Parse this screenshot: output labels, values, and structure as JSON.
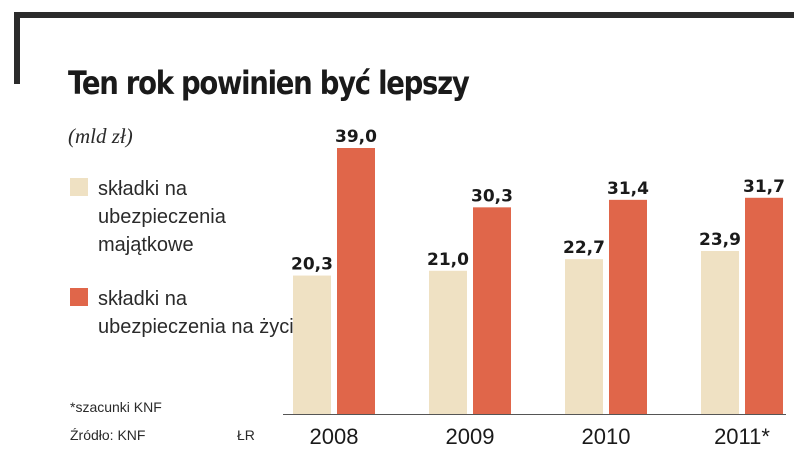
{
  "title": "Ten rok powinien być lepszy",
  "unit": "(mld zł)",
  "legend": [
    {
      "label": "składki na ubezpieczenia majątkowe",
      "color": "#efe1c3"
    },
    {
      "label": "składki na ubezpieczenia na życie",
      "color": "#e0664a"
    }
  ],
  "footnote": "*szacunki KNF",
  "source": "Źródło: KNF",
  "initials": "ŁR",
  "chart_data": {
    "type": "bar",
    "categories": [
      "2008",
      "2009",
      "2010",
      "2011*"
    ],
    "series": [
      {
        "name": "składki na ubezpieczenia majątkowe",
        "values": [
          20.3,
          21.0,
          22.7,
          23.9
        ],
        "labels": [
          "20,3",
          "21,0",
          "22,7",
          "23,9"
        ],
        "color": "#efe1c3"
      },
      {
        "name": "składki na ubezpieczenia na życie",
        "values": [
          39.0,
          30.3,
          31.4,
          31.7
        ],
        "labels": [
          "39,0",
          "30,3",
          "31,4",
          "31,7"
        ],
        "color": "#e0664a"
      }
    ],
    "ylim": [
      0,
      39
    ],
    "grid": false,
    "legend_position": "left"
  }
}
